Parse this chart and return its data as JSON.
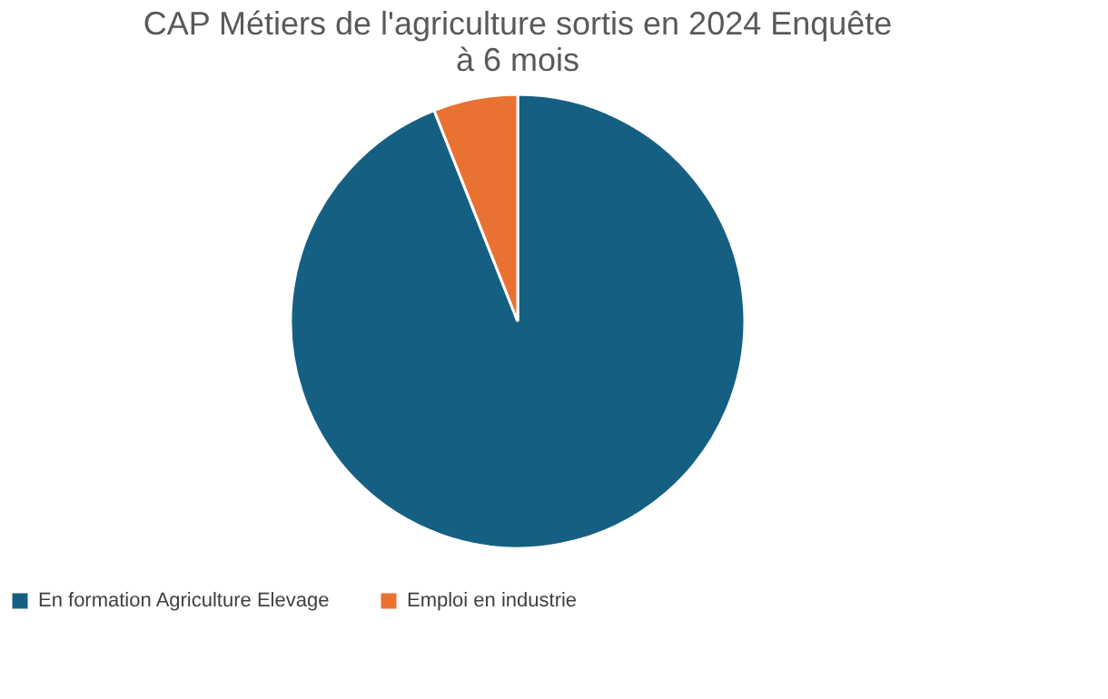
{
  "chart_data": {
    "type": "pie",
    "title": "CAP Métiers de l'agriculture sortis en 2024 Enquête à 6 mois",
    "categories": [
      "En formation Agriculture Elevage",
      "Emploi en industrie"
    ],
    "values": [
      94,
      6
    ],
    "colors": [
      "#156082",
      "#e97132"
    ],
    "legend": "bottom"
  }
}
